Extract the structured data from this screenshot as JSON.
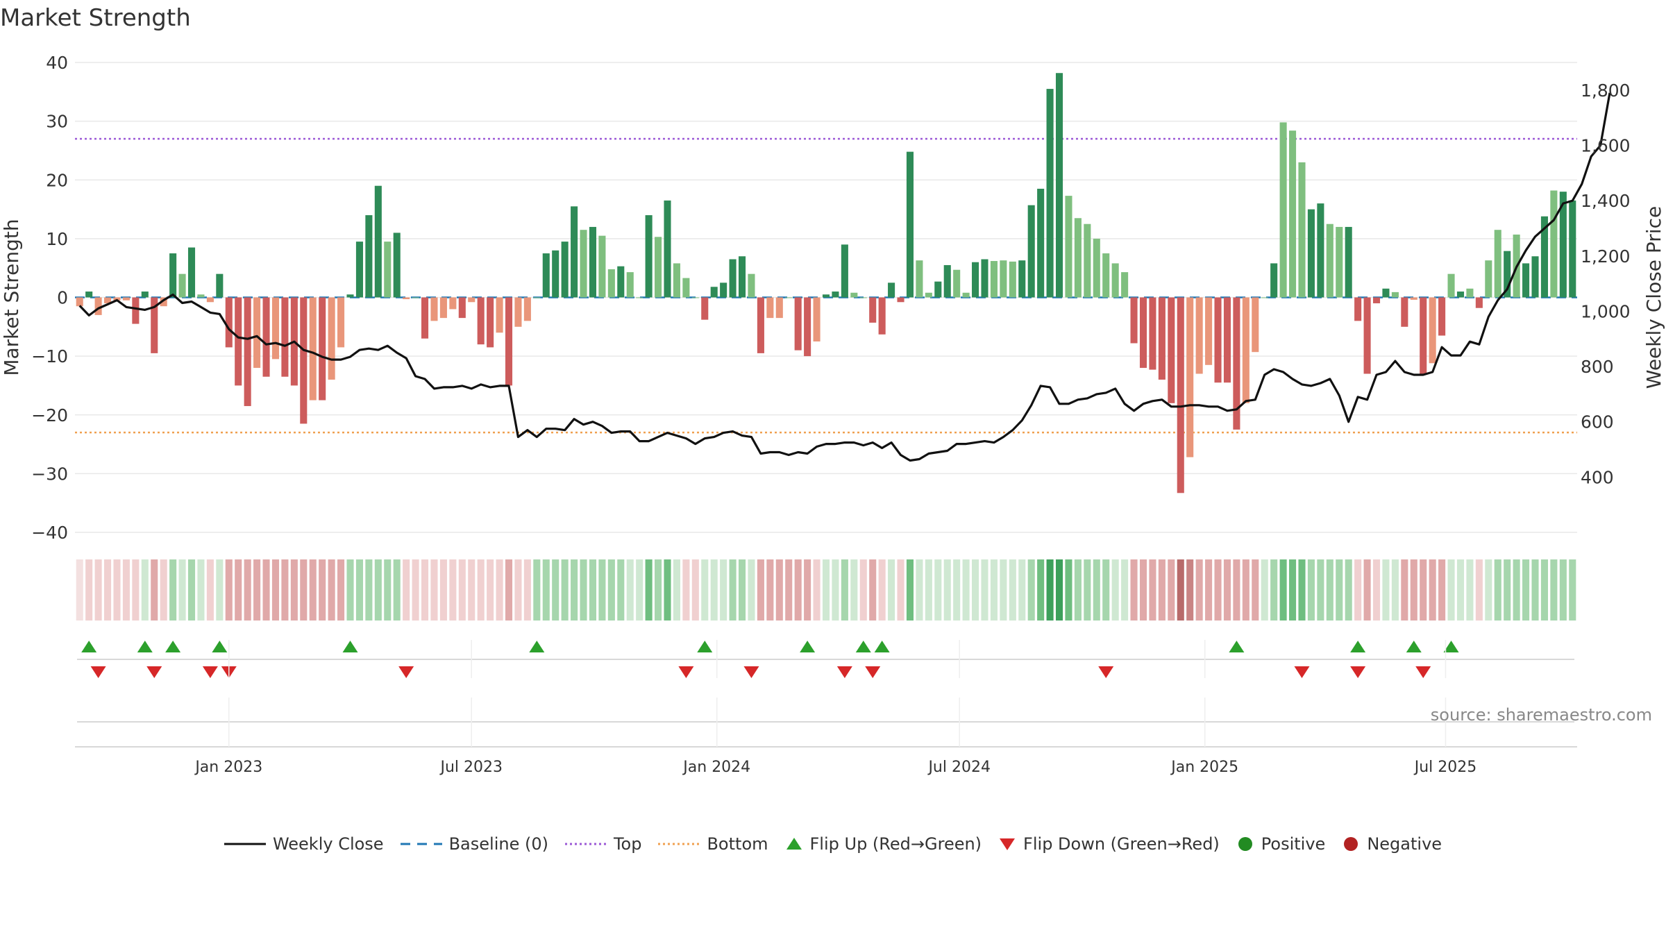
{
  "title": "Market Strength",
  "source": "source: sharemaestro.com",
  "colors": {
    "strong_green": "#2e8b57",
    "light_green": "#7fbf7f",
    "strong_red": "#cd5c5c",
    "light_red": "#e9967a",
    "close_line": "#111111",
    "baseline": "#1f77b4",
    "top": "#9b59d6",
    "bottom": "#f0a050",
    "flip_up": "#2ca02c",
    "flip_down": "#d62728",
    "positive": "#228b22",
    "negative": "#b22222"
  },
  "chart_data": {
    "type": "bar",
    "title": "Market Strength",
    "ylabel_left": "Market Strength",
    "ylabel_right": "Weekly Close Price",
    "ylim_left": [
      -40,
      40
    ],
    "yticks_left": [
      40,
      30,
      20,
      10,
      0,
      -10,
      -20,
      -30,
      -40
    ],
    "ylim_right": [
      200,
      1900
    ],
    "yticks_right": [
      {
        "value": 1800,
        "label": "1,800"
      },
      {
        "value": 1600,
        "label": "1,600"
      },
      {
        "value": 1400,
        "label": "1,400"
      },
      {
        "value": 1200,
        "label": "1,200"
      },
      {
        "value": 1000,
        "label": "1,000"
      },
      {
        "value": 800,
        "label": "800"
      },
      {
        "value": 600,
        "label": "600"
      },
      {
        "value": 400,
        "label": "400"
      }
    ],
    "top_threshold": 27,
    "bottom_threshold": -23,
    "x_tick_labels": [
      {
        "label": "Jan 2023",
        "week": 16
      },
      {
        "label": "Jul 2023",
        "week": 42
      },
      {
        "label": "Jan 2024",
        "week": 68.3
      },
      {
        "label": "Jul 2024",
        "week": 94.3
      },
      {
        "label": "Jan 2025",
        "week": 120.6
      },
      {
        "label": "Jul 2025",
        "week": 146.4
      }
    ],
    "strength": [
      -1.5,
      1,
      -3,
      -1,
      -0.5,
      -0.5,
      -4.5,
      1,
      -9.5,
      -1.5,
      7.5,
      4,
      8.5,
      0.5,
      -0.8,
      4,
      -8.5,
      -15,
      -18.5,
      -12,
      -13.5,
      -10.5,
      -13.5,
      -15,
      -21.5,
      -17.5,
      -17.5,
      -14,
      -8.5,
      0.5,
      9.5,
      14,
      19,
      9.5,
      11,
      -0.3,
      0,
      -7,
      -4,
      -3.5,
      -2,
      -3.5,
      -0.8,
      -8,
      -8.5,
      -6,
      -15,
      -5,
      -4,
      0,
      7.5,
      8,
      9.5,
      15.5,
      11.5,
      12,
      10.5,
      4.8,
      5.3,
      4.3,
      0,
      14,
      10.3,
      16.5,
      5.8,
      3.3,
      0,
      -3.8,
      1.8,
      2.5,
      6.5,
      7,
      4,
      -9.5,
      -3.5,
      -3.5,
      0,
      -9,
      -10,
      -7.5,
      0.5,
      1,
      9,
      0.8,
      0,
      -4.3,
      -6.3,
      2.5,
      -0.8,
      24.8,
      6.3,
      0.8,
      2.7,
      5.5,
      4.7,
      0.8,
      6,
      6.5,
      6.2,
      6.3,
      6.1,
      6.3,
      15.7,
      18.5,
      35.5,
      38.2,
      17.3,
      13.5,
      12.5,
      10,
      7.5,
      5.8,
      4.3,
      -7.8,
      -12,
      -12.3,
      -14,
      -18,
      -33.3,
      -27.2,
      -13,
      -11.5,
      -14.5,
      -14.5,
      -22.5,
      -18,
      -9.3,
      0,
      5.8,
      29.8,
      28.4,
      23,
      15,
      16,
      12.5,
      12,
      12,
      -4,
      -13,
      -1,
      1.5,
      0.9,
      -5,
      -0.4,
      -13,
      -11.2,
      -6.5,
      4,
      1,
      1.5,
      -1.8,
      6.3,
      11.5,
      7.9,
      10.7,
      5.8,
      7,
      13.8,
      18.2,
      18,
      16.5
    ],
    "strength_shade": [
      "light",
      "strong",
      "light",
      "light",
      "light",
      "light",
      "strong",
      "strong",
      "strong",
      "light",
      "strong",
      "light",
      "strong",
      "light",
      "light",
      "strong",
      "strong",
      "strong",
      "strong",
      "light",
      "strong",
      "light",
      "strong",
      "strong",
      "strong",
      "light",
      "strong",
      "light",
      "light",
      "strong",
      "strong",
      "strong",
      "strong",
      "light",
      "strong",
      "light",
      "light",
      "strong",
      "light",
      "light",
      "light",
      "strong",
      "light",
      "strong",
      "strong",
      "light",
      "strong",
      "light",
      "light",
      "light",
      "strong",
      "strong",
      "strong",
      "strong",
      "light",
      "strong",
      "light",
      "light",
      "strong",
      "light",
      "light",
      "strong",
      "light",
      "strong",
      "light",
      "light",
      "light",
      "strong",
      "strong",
      "strong",
      "strong",
      "strong",
      "light",
      "strong",
      "light",
      "light",
      "light",
      "strong",
      "strong",
      "light",
      "strong",
      "strong",
      "strong",
      "light",
      "light",
      "strong",
      "strong",
      "strong",
      "strong",
      "strong",
      "light",
      "light",
      "strong",
      "strong",
      "light",
      "light",
      "strong",
      "strong",
      "light",
      "light",
      "light",
      "strong",
      "strong",
      "strong",
      "strong",
      "strong",
      "light",
      "light",
      "light",
      "light",
      "light",
      "light",
      "light",
      "strong",
      "strong",
      "strong",
      "strong",
      "strong",
      "strong",
      "light",
      "light",
      "light",
      "strong",
      "strong",
      "strong",
      "light",
      "light",
      "light",
      "strong",
      "light",
      "light",
      "light",
      "strong",
      "strong",
      "light",
      "light",
      "strong",
      "strong",
      "strong",
      "strong",
      "strong",
      "light",
      "strong",
      "light",
      "strong",
      "light",
      "strong",
      "light",
      "strong",
      "light",
      "strong",
      "light",
      "light",
      "strong",
      "light",
      "strong",
      "strong",
      "strong",
      "light",
      "strong",
      "strong",
      "light"
    ],
    "weekly_close": [
      1020,
      985,
      1010,
      1025,
      1040,
      1015,
      1010,
      1005,
      1015,
      1040,
      1060,
      1030,
      1035,
      1015,
      995,
      990,
      935,
      905,
      900,
      910,
      880,
      885,
      875,
      890,
      860,
      850,
      835,
      825,
      825,
      835,
      860,
      865,
      860,
      875,
      850,
      830,
      765,
      755,
      720,
      725,
      725,
      730,
      720,
      735,
      725,
      730,
      730,
      545,
      570,
      545,
      575,
      575,
      570,
      610,
      590,
      600,
      585,
      560,
      565,
      565,
      530,
      530,
      545,
      560,
      550,
      540,
      520,
      540,
      545,
      560,
      565,
      550,
      545,
      485,
      490,
      490,
      480,
      490,
      485,
      510,
      520,
      520,
      525,
      525,
      515,
      525,
      505,
      525,
      480,
      460,
      465,
      485,
      490,
      495,
      520,
      520,
      525,
      530,
      525,
      545,
      570,
      605,
      660,
      730,
      725,
      665,
      665,
      680,
      685,
      700,
      705,
      720,
      665,
      640,
      665,
      675,
      680,
      655,
      655,
      660,
      660,
      655,
      655,
      640,
      645,
      675,
      680,
      770,
      790,
      780,
      755,
      735,
      730,
      740,
      755,
      695,
      600,
      690,
      680,
      770,
      780,
      820,
      780,
      770,
      770,
      780,
      870,
      840,
      840,
      890,
      880,
      980,
      1040,
      1080,
      1160,
      1220,
      1270,
      1300,
      1330,
      1390,
      1400,
      1460,
      1560,
      1600,
      1790
    ],
    "regime_bar": [
      {
        "state": "neutral",
        "level": 1
      },
      {
        "state": "negative",
        "level": 1
      },
      {
        "state": "negative",
        "level": 1
      },
      {
        "state": "negative",
        "level": 1
      },
      {
        "state": "negative",
        "level": 1
      },
      {
        "state": "negative",
        "level": 1
      },
      {
        "state": "negative",
        "level": 1
      },
      {
        "state": "positive",
        "level": 1
      },
      {
        "state": "negative",
        "level": 2
      },
      {
        "state": "negative",
        "level": 1
      },
      {
        "state": "positive",
        "level": 2
      },
      {
        "state": "positive",
        "level": 1
      },
      {
        "state": "positive",
        "level": 2
      },
      {
        "state": "positive",
        "level": 1
      },
      {
        "state": "negative",
        "level": 1
      },
      {
        "state": "positive",
        "level": 1
      },
      {
        "state": "negative",
        "level": 2
      },
      {
        "state": "negative",
        "level": 2
      },
      {
        "state": "negative",
        "level": 2
      },
      {
        "state": "negative",
        "level": 2
      },
      {
        "state": "negative",
        "level": 2
      },
      {
        "state": "negative",
        "level": 2
      },
      {
        "state": "negative",
        "level": 2
      },
      {
        "state": "negative",
        "level": 2
      },
      {
        "state": "negative",
        "level": 2
      },
      {
        "state": "negative",
        "level": 2
      },
      {
        "state": "negative",
        "level": 2
      },
      {
        "state": "negative",
        "level": 2
      },
      {
        "state": "negative",
        "level": 2
      },
      {
        "state": "positive",
        "level": 2
      },
      {
        "state": "positive",
        "level": 2
      },
      {
        "state": "positive",
        "level": 2
      },
      {
        "state": "positive",
        "level": 2
      },
      {
        "state": "positive",
        "level": 2
      },
      {
        "state": "positive",
        "level": 2
      },
      {
        "state": "negative",
        "level": 1
      },
      {
        "state": "negative",
        "level": 1
      },
      {
        "state": "negative",
        "level": 1
      },
      {
        "state": "negative",
        "level": 1
      },
      {
        "state": "negative",
        "level": 1
      },
      {
        "state": "negative",
        "level": 1
      },
      {
        "state": "negative",
        "level": 1
      },
      {
        "state": "negative",
        "level": 1
      },
      {
        "state": "negative",
        "level": 1
      },
      {
        "state": "negative",
        "level": 1
      },
      {
        "state": "negative",
        "level": 1
      },
      {
        "state": "negative",
        "level": 2
      },
      {
        "state": "negative",
        "level": 1
      },
      {
        "state": "negative",
        "level": 1
      },
      {
        "state": "positive",
        "level": 2
      },
      {
        "state": "positive",
        "level": 2
      },
      {
        "state": "positive",
        "level": 2
      },
      {
        "state": "positive",
        "level": 2
      },
      {
        "state": "positive",
        "level": 2
      },
      {
        "state": "positive",
        "level": 2
      },
      {
        "state": "positive",
        "level": 2
      },
      {
        "state": "positive",
        "level": 2
      },
      {
        "state": "positive",
        "level": 2
      },
      {
        "state": "positive",
        "level": 2
      },
      {
        "state": "positive",
        "level": 1
      },
      {
        "state": "positive",
        "level": 1
      },
      {
        "state": "positive",
        "level": 3
      },
      {
        "state": "positive",
        "level": 2
      },
      {
        "state": "positive",
        "level": 3
      },
      {
        "state": "positive",
        "level": 1
      },
      {
        "state": "negative",
        "level": 1
      },
      {
        "state": "negative",
        "level": 1
      },
      {
        "state": "positive",
        "level": 1
      },
      {
        "state": "positive",
        "level": 1
      },
      {
        "state": "positive",
        "level": 1
      },
      {
        "state": "positive",
        "level": 2
      },
      {
        "state": "positive",
        "level": 2
      },
      {
        "state": "positive",
        "level": 1
      },
      {
        "state": "negative",
        "level": 2
      },
      {
        "state": "negative",
        "level": 2
      },
      {
        "state": "negative",
        "level": 2
      },
      {
        "state": "negative",
        "level": 2
      },
      {
        "state": "negative",
        "level": 2
      },
      {
        "state": "negative",
        "level": 2
      },
      {
        "state": "negative",
        "level": 1
      },
      {
        "state": "positive",
        "level": 1
      },
      {
        "state": "positive",
        "level": 1
      },
      {
        "state": "positive",
        "level": 2
      },
      {
        "state": "positive",
        "level": 1
      },
      {
        "state": "negative",
        "level": 1
      },
      {
        "state": "negative",
        "level": 2
      },
      {
        "state": "negative",
        "level": 1
      },
      {
        "state": "positive",
        "level": 1
      },
      {
        "state": "negative",
        "level": 1
      },
      {
        "state": "positive",
        "level": 3
      },
      {
        "state": "positive",
        "level": 1
      },
      {
        "state": "positive",
        "level": 1
      },
      {
        "state": "positive",
        "level": 1
      },
      {
        "state": "positive",
        "level": 1
      },
      {
        "state": "positive",
        "level": 1
      },
      {
        "state": "positive",
        "level": 1
      },
      {
        "state": "positive",
        "level": 1
      },
      {
        "state": "positive",
        "level": 1
      },
      {
        "state": "positive",
        "level": 1
      },
      {
        "state": "positive",
        "level": 1
      },
      {
        "state": "positive",
        "level": 1
      },
      {
        "state": "positive",
        "level": 1
      },
      {
        "state": "positive",
        "level": 2
      },
      {
        "state": "positive",
        "level": 3
      },
      {
        "state": "positive",
        "level": 4
      },
      {
        "state": "positive",
        "level": 4
      },
      {
        "state": "positive",
        "level": 3
      },
      {
        "state": "positive",
        "level": 2
      },
      {
        "state": "positive",
        "level": 2
      },
      {
        "state": "positive",
        "level": 2
      },
      {
        "state": "positive",
        "level": 2
      },
      {
        "state": "positive",
        "level": 1
      },
      {
        "state": "positive",
        "level": 1
      },
      {
        "state": "negative",
        "level": 2
      },
      {
        "state": "negative",
        "level": 2
      },
      {
        "state": "negative",
        "level": 2
      },
      {
        "state": "negative",
        "level": 2
      },
      {
        "state": "negative",
        "level": 2
      },
      {
        "state": "negative",
        "level": 4
      },
      {
        "state": "negative",
        "level": 3
      },
      {
        "state": "negative",
        "level": 2
      },
      {
        "state": "negative",
        "level": 2
      },
      {
        "state": "negative",
        "level": 2
      },
      {
        "state": "negative",
        "level": 2
      },
      {
        "state": "negative",
        "level": 2
      },
      {
        "state": "negative",
        "level": 2
      },
      {
        "state": "negative",
        "level": 2
      },
      {
        "state": "positive",
        "level": 1
      },
      {
        "state": "positive",
        "level": 2
      },
      {
        "state": "positive",
        "level": 3
      },
      {
        "state": "positive",
        "level": 3
      },
      {
        "state": "positive",
        "level": 3
      },
      {
        "state": "positive",
        "level": 2
      },
      {
        "state": "positive",
        "level": 2
      },
      {
        "state": "positive",
        "level": 2
      },
      {
        "state": "positive",
        "level": 2
      },
      {
        "state": "positive",
        "level": 2
      },
      {
        "state": "negative",
        "level": 1
      },
      {
        "state": "negative",
        "level": 2
      },
      {
        "state": "negative",
        "level": 1
      },
      {
        "state": "positive",
        "level": 1
      },
      {
        "state": "positive",
        "level": 1
      },
      {
        "state": "negative",
        "level": 2
      },
      {
        "state": "negative",
        "level": 2
      },
      {
        "state": "negative",
        "level": 2
      },
      {
        "state": "negative",
        "level": 2
      },
      {
        "state": "negative",
        "level": 2
      },
      {
        "state": "positive",
        "level": 1
      },
      {
        "state": "positive",
        "level": 1
      },
      {
        "state": "positive",
        "level": 1
      },
      {
        "state": "negative",
        "level": 1
      },
      {
        "state": "positive",
        "level": 1
      },
      {
        "state": "positive",
        "level": 2
      },
      {
        "state": "positive",
        "level": 2
      },
      {
        "state": "positive",
        "level": 2
      },
      {
        "state": "positive",
        "level": 2
      },
      {
        "state": "positive",
        "level": 2
      },
      {
        "state": "positive",
        "level": 2
      },
      {
        "state": "positive",
        "level": 2
      },
      {
        "state": "positive",
        "level": 2
      },
      {
        "state": "positive",
        "level": 2
      }
    ],
    "flip_up_weeks": [
      1,
      7,
      10,
      15,
      29,
      49,
      67,
      78,
      84,
      86,
      124,
      137,
      143,
      147
    ],
    "flip_down_weeks": [
      2,
      8,
      14,
      16,
      35,
      65,
      72,
      82,
      85,
      110,
      131,
      137,
      144
    ],
    "legend": [
      {
        "label": "Weekly Close",
        "symbol": "line"
      },
      {
        "label": "Baseline (0)",
        "symbol": "dash"
      },
      {
        "label": "Top",
        "symbol": "dot-purple"
      },
      {
        "label": "Bottom",
        "symbol": "dot-orange"
      },
      {
        "label": "Flip Up (Red→Green)",
        "symbol": "tri-up"
      },
      {
        "label": "Flip Down (Green→Red)",
        "symbol": "tri-down"
      },
      {
        "label": "Positive",
        "symbol": "circle-green"
      },
      {
        "label": "Negative",
        "symbol": "circle-red"
      }
    ]
  }
}
